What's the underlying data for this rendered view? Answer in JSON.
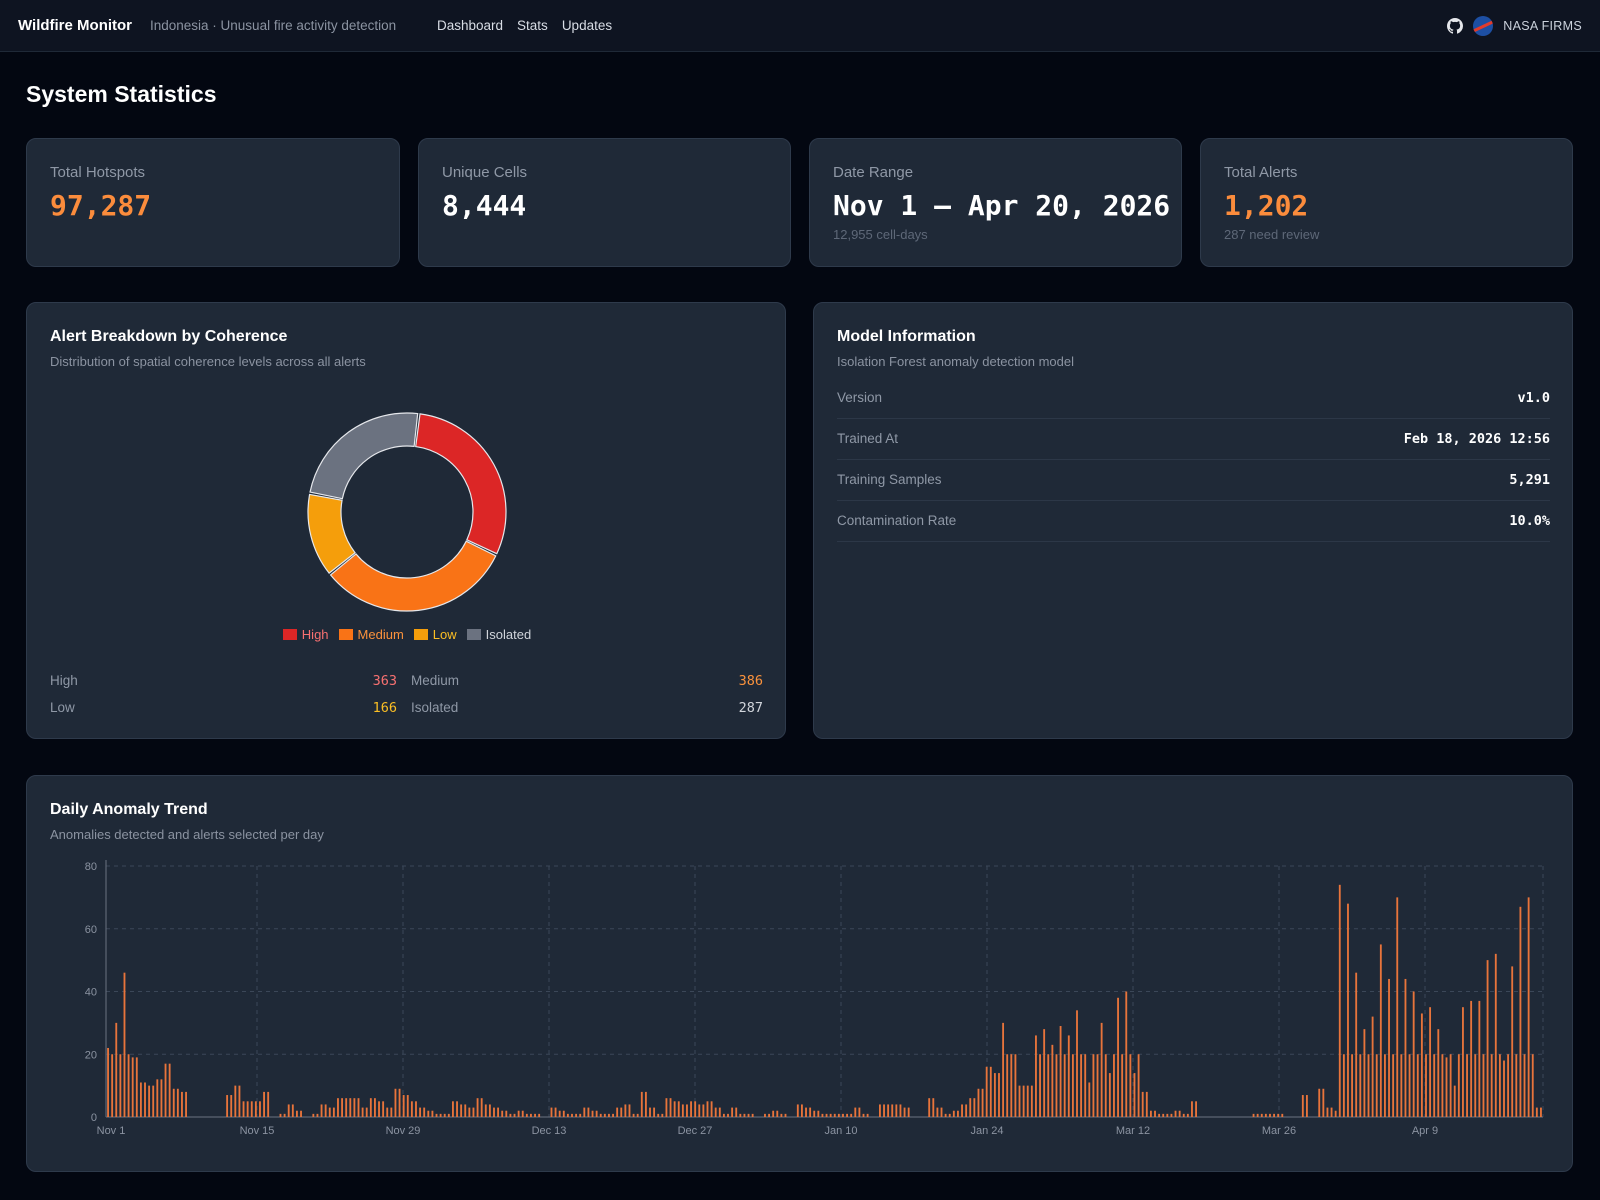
{
  "header": {
    "brand": "Wildfire Monitor",
    "tagline": "Indonesia · Unusual fire activity detection",
    "nav": [
      "Dashboard",
      "Stats",
      "Updates"
    ],
    "source_label": "NASA FIRMS",
    "icons": [
      "github-icon",
      "nasa-icon"
    ]
  },
  "page_title": "System Statistics",
  "stats": [
    {
      "label": "Total Hotspots",
      "value": "97,287",
      "sub": "",
      "accent": "#fb8c3c"
    },
    {
      "label": "Unique Cells",
      "value": "8,444",
      "sub": "",
      "accent": "#ffffff"
    },
    {
      "label": "Date Range",
      "value": "Nov 1 — Apr 20, 2026",
      "sub": "12,955 cell-days",
      "accent": "#ffffff"
    },
    {
      "label": "Total Alerts",
      "value": "1,202",
      "sub": "287 need review",
      "accent": "#fb8c3c"
    }
  ],
  "coherence": {
    "title": "Alert Breakdown by Coherence",
    "description": "Distribution of spatial coherence levels across all alerts",
    "segments": [
      {
        "label": "High",
        "value": 363,
        "value_text": "363",
        "color": "#dc2626",
        "text_color": "#f87171"
      },
      {
        "label": "Medium",
        "value": 386,
        "value_text": "386",
        "color": "#f97316",
        "text_color": "#fb923c"
      },
      {
        "label": "Low",
        "value": 166,
        "value_text": "166",
        "color": "#f59e0b",
        "text_color": "#fbbf24"
      },
      {
        "label": "Isolated",
        "value": 287,
        "value_text": "287",
        "color": "#6b7280",
        "text_color": "#d1d5db"
      }
    ]
  },
  "model": {
    "title": "Model Information",
    "description": "Isolation Forest anomaly detection model",
    "rows": [
      {
        "key": "Version",
        "value": "v1.0"
      },
      {
        "key": "Trained At",
        "value": "Feb 18, 2026 12:56"
      },
      {
        "key": "Training Samples",
        "value": "5,291"
      },
      {
        "key": "Contamination Rate",
        "value": "10.0%"
      }
    ]
  },
  "trend": {
    "title": "Daily Anomaly Trend",
    "description": "Anomalies detected and alerts selected per day"
  },
  "chart_data": {
    "type": "bar",
    "ylim": [
      0,
      80
    ],
    "yticks": [
      0,
      20,
      40,
      60,
      80
    ],
    "xtick_labels": [
      "Nov 1",
      "Nov 15",
      "Nov 29",
      "Dec 13",
      "Dec 27",
      "Jan 10",
      "Jan 24",
      "Mar 12",
      "Mar 26",
      "Apr 9"
    ],
    "grid": true,
    "bar_color": "#e8743b",
    "series": [
      {
        "values": [
          22,
          20,
          30,
          20,
          46,
          20,
          19,
          19,
          11,
          11,
          10,
          10,
          12,
          12,
          17,
          17,
          9,
          9,
          8,
          8,
          0,
          0,
          0,
          0,
          0,
          0,
          0,
          0,
          0,
          7,
          7,
          10,
          10,
          5,
          5,
          5,
          5,
          5,
          8,
          8,
          0,
          0,
          1,
          1,
          4,
          4,
          2,
          2,
          0,
          0,
          1,
          1,
          4,
          4,
          3,
          3,
          6,
          6,
          6,
          6,
          6,
          6,
          3,
          3,
          6,
          6,
          5,
          5,
          3,
          3,
          9,
          9,
          7,
          7,
          5,
          5,
          3,
          3,
          2,
          2,
          1,
          1,
          1,
          1,
          5,
          5,
          4,
          4,
          3,
          3,
          6,
          6,
          4,
          4,
          3,
          3,
          2,
          2,
          1,
          1,
          2,
          2,
          1,
          1,
          1,
          1,
          0,
          0,
          3,
          3,
          2,
          2,
          1,
          1,
          1,
          1,
          3,
          3,
          2,
          2,
          1,
          1,
          1,
          1,
          3,
          3,
          4,
          4,
          1,
          1,
          8,
          8,
          3,
          3,
          1,
          1,
          6,
          6,
          5,
          5,
          4,
          4,
          5,
          5,
          4,
          4,
          5,
          5,
          3,
          3,
          1,
          1,
          3,
          3,
          1,
          1,
          1,
          1,
          0,
          0,
          1,
          1,
          2,
          2,
          1,
          1,
          0,
          0,
          4,
          4,
          3,
          3,
          2,
          2,
          1,
          1,
          1,
          1,
          1,
          1,
          1,
          1,
          3,
          3,
          1,
          1,
          0,
          0,
          4,
          4,
          4,
          4,
          4,
          4,
          3,
          3,
          0,
          0,
          0,
          0,
          6,
          6,
          3,
          3,
          1,
          1,
          2,
          2,
          4,
          4,
          6,
          6,
          9,
          9,
          16,
          16,
          14,
          14,
          30,
          20,
          20,
          20,
          10,
          10,
          10,
          10,
          26,
          20,
          28,
          20,
          23,
          20,
          29,
          20,
          26,
          20,
          34,
          20,
          20,
          11,
          20,
          20,
          30,
          20,
          14,
          20,
          38,
          20,
          40,
          20,
          14,
          20,
          8,
          8,
          2,
          2,
          1,
          1,
          1,
          1,
          2,
          2,
          1,
          1,
          5,
          5,
          0,
          0,
          0,
          0,
          0,
          0,
          0,
          0,
          0,
          0,
          0,
          0,
          0,
          1,
          1,
          1,
          1,
          1,
          1,
          1,
          1,
          0,
          0,
          0,
          0,
          7,
          7,
          0,
          0,
          9,
          9,
          3,
          3,
          2,
          74,
          20,
          68,
          20,
          46,
          20,
          28,
          20,
          32,
          20,
          55,
          20,
          44,
          20,
          70,
          20,
          44,
          20,
          40,
          20,
          33,
          20,
          35,
          20,
          28,
          20,
          19,
          20,
          10,
          20,
          35,
          20,
          37,
          20,
          37,
          20,
          50,
          20,
          52,
          20,
          18,
          20,
          48,
          20,
          67,
          20,
          70,
          20,
          3,
          3
        ]
      }
    ]
  }
}
